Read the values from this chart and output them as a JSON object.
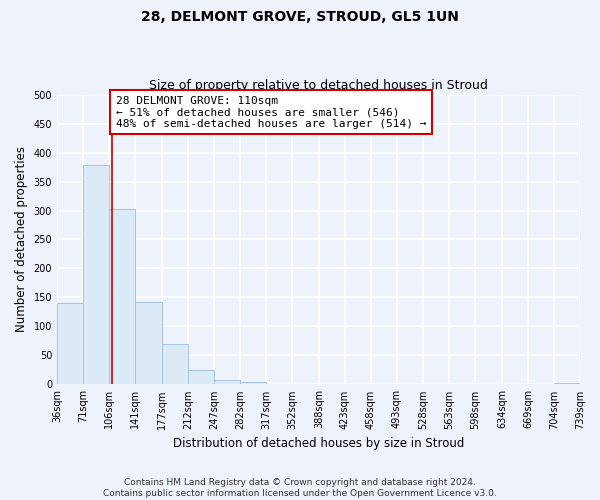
{
  "title": "28, DELMONT GROVE, STROUD, GL5 1UN",
  "subtitle": "Size of property relative to detached houses in Stroud",
  "xlabel": "Distribution of detached houses by size in Stroud",
  "ylabel": "Number of detached properties",
  "bar_edges": [
    36,
    71,
    106,
    141,
    177,
    212,
    247,
    282,
    317,
    352,
    388,
    423,
    458,
    493,
    528,
    563,
    598,
    634,
    669,
    704,
    739
  ],
  "bar_values": [
    140,
    378,
    303,
    143,
    70,
    25,
    8,
    5,
    0,
    0,
    0,
    1,
    0,
    0,
    0,
    0,
    0,
    0,
    0,
    2
  ],
  "bar_color": "#c5d8f0",
  "bar_facecolor": "#dce9f7",
  "bar_edgecolor": "#a8c4e0",
  "property_line_x": 110,
  "property_line_color": "#cc0000",
  "annotation_line1": "28 DELMONT GROVE: 110sqm",
  "annotation_line2": "← 51% of detached houses are smaller (546)",
  "annotation_line3": "48% of semi-detached houses are larger (514) →",
  "annotation_box_edgecolor": "#cc0000",
  "annotation_box_facecolor": "#ffffff",
  "ylim": [
    0,
    500
  ],
  "yticks": [
    0,
    50,
    100,
    150,
    200,
    250,
    300,
    350,
    400,
    450,
    500
  ],
  "tick_labels": [
    "36sqm",
    "71sqm",
    "106sqm",
    "141sqm",
    "177sqm",
    "212sqm",
    "247sqm",
    "282sqm",
    "317sqm",
    "352sqm",
    "388sqm",
    "423sqm",
    "458sqm",
    "493sqm",
    "528sqm",
    "563sqm",
    "598sqm",
    "634sqm",
    "669sqm",
    "704sqm",
    "739sqm"
  ],
  "footer_text": "Contains HM Land Registry data © Crown copyright and database right 2024.\nContains public sector information licensed under the Open Government Licence v3.0.",
  "bg_color": "#eef2fb",
  "plot_bg_color": "#eef2fb",
  "grid_color": "#ffffff",
  "title_fontsize": 10,
  "subtitle_fontsize": 9,
  "axis_label_fontsize": 8.5,
  "tick_fontsize": 7,
  "annotation_fontsize": 8,
  "footer_fontsize": 6.5
}
